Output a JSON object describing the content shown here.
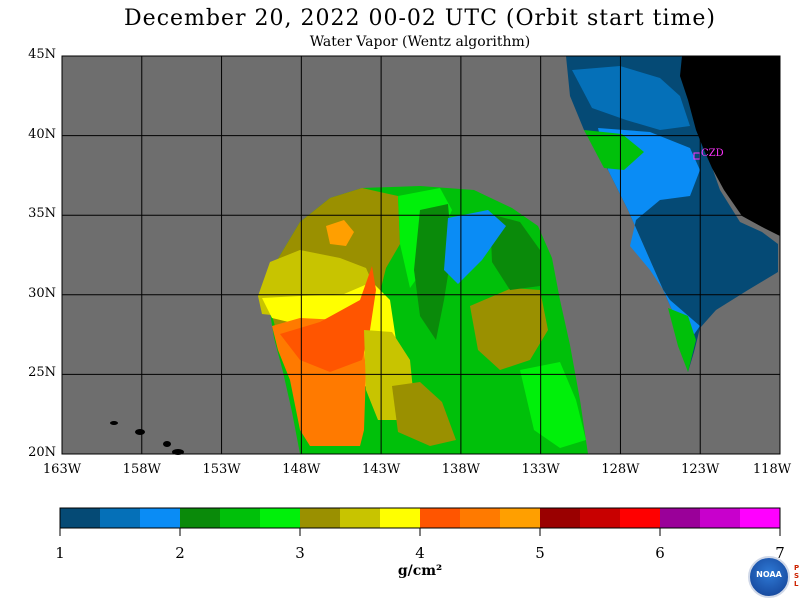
{
  "title": "December 20, 2022  00-02 UTC  (Orbit start time)",
  "subtitle": "Water Vapor (Wentz algorithm)",
  "map": {
    "lat_ticks": [
      "45N",
      "40N",
      "35N",
      "30N",
      "25N",
      "20N"
    ],
    "lon_ticks": [
      "163W",
      "158W",
      "153W",
      "148W",
      "143W",
      "138W",
      "133W",
      "128W",
      "123W",
      "118W"
    ],
    "lat_range": [
      20,
      45
    ],
    "lon_range": [
      -163,
      -118
    ],
    "background_color": "#6e6e6e",
    "land_color": "#000000",
    "gridlines": true,
    "station_label": "CZD",
    "station_color": "#ff33ff"
  },
  "colorbar": {
    "ticks": [
      "1",
      "2",
      "3",
      "4",
      "5",
      "6",
      "7"
    ],
    "unit": "g/cm²",
    "range": [
      1,
      7
    ],
    "colors": [
      "#054a75",
      "#0570b8",
      "#0a8cf5",
      "#0a8a0a",
      "#00c00a",
      "#00f00a",
      "#9a9000",
      "#c8c400",
      "#ffff00",
      "#ff5500",
      "#ff7a00",
      "#ff9f00",
      "#9a0000",
      "#c80000",
      "#ff0000",
      "#9a0099",
      "#c800cc",
      "#ff00ff"
    ]
  },
  "logo": {
    "text": "NOAA",
    "side_letters": [
      "P",
      "S",
      "L"
    ]
  }
}
